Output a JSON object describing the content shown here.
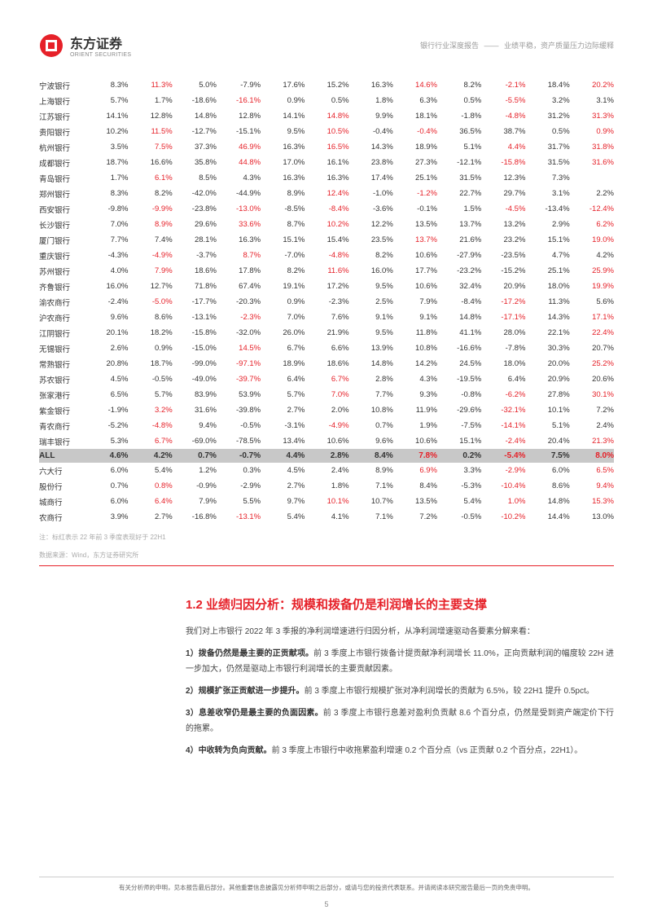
{
  "header": {
    "brand_cn": "东方证券",
    "brand_en": "ORIENT SECURITIES",
    "right_1": "银行行业深度报告",
    "right_sep": "——",
    "right_2": "业绩平稳，资产质量压力边际缓释"
  },
  "table": {
    "highlight_color": "#e62129",
    "rows": [
      {
        "n": "宁波银行",
        "v": [
          "8.3%",
          "11.3%",
          "5.0%",
          "-7.9%",
          "17.6%",
          "15.2%",
          "16.3%",
          "14.6%",
          "8.2%",
          "-2.1%",
          "18.4%",
          "20.2%"
        ],
        "h": [
          0,
          1,
          0,
          0,
          0,
          0,
          0,
          1,
          0,
          1,
          0,
          1
        ]
      },
      {
        "n": "上海银行",
        "v": [
          "5.7%",
          "1.7%",
          "-18.6%",
          "-16.1%",
          "0.9%",
          "0.5%",
          "1.8%",
          "6.3%",
          "0.5%",
          "-5.5%",
          "3.2%",
          "3.1%"
        ],
        "h": [
          0,
          0,
          0,
          1,
          0,
          0,
          0,
          0,
          0,
          1,
          0,
          0
        ]
      },
      {
        "n": "江苏银行",
        "v": [
          "14.1%",
          "12.8%",
          "14.8%",
          "12.8%",
          "14.1%",
          "14.8%",
          "9.9%",
          "18.1%",
          "-1.8%",
          "-4.8%",
          "31.2%",
          "31.3%"
        ],
        "h": [
          0,
          0,
          0,
          0,
          0,
          1,
          0,
          0,
          0,
          1,
          0,
          1
        ]
      },
      {
        "n": "贵阳银行",
        "v": [
          "10.2%",
          "11.5%",
          "-12.7%",
          "-15.1%",
          "9.5%",
          "10.5%",
          "-0.4%",
          "-0.4%",
          "36.5%",
          "38.7%",
          "0.5%",
          "0.9%"
        ],
        "h": [
          0,
          1,
          0,
          0,
          0,
          1,
          0,
          1,
          0,
          0,
          0,
          1
        ]
      },
      {
        "n": "杭州银行",
        "v": [
          "3.5%",
          "7.5%",
          "37.3%",
          "46.9%",
          "16.3%",
          "16.5%",
          "14.3%",
          "18.9%",
          "5.1%",
          "4.4%",
          "31.7%",
          "31.8%"
        ],
        "h": [
          0,
          1,
          0,
          1,
          0,
          1,
          0,
          0,
          0,
          1,
          0,
          1
        ]
      },
      {
        "n": "成都银行",
        "v": [
          "18.7%",
          "16.6%",
          "35.8%",
          "44.8%",
          "17.0%",
          "16.1%",
          "23.8%",
          "27.3%",
          "-12.1%",
          "-15.8%",
          "31.5%",
          "31.6%"
        ],
        "h": [
          0,
          0,
          0,
          1,
          0,
          0,
          0,
          0,
          0,
          1,
          0,
          1
        ]
      },
      {
        "n": "青岛银行",
        "v": [
          "1.7%",
          "6.1%",
          "8.5%",
          "4.3%",
          "16.3%",
          "16.3%",
          "17.4%",
          "25.1%",
          "31.5%",
          "12.3%",
          "7.3%",
          " "
        ],
        "h": [
          0,
          1,
          0,
          0,
          0,
          0,
          0,
          0,
          0,
          0,
          0,
          0
        ]
      },
      {
        "n": "郑州银行",
        "v": [
          "8.3%",
          "8.2%",
          "-42.0%",
          "-44.9%",
          "8.9%",
          "12.4%",
          "-1.0%",
          "-1.2%",
          "22.7%",
          "29.7%",
          "3.1%",
          "2.2%"
        ],
        "h": [
          0,
          0,
          0,
          0,
          0,
          1,
          0,
          1,
          0,
          0,
          0,
          0
        ]
      },
      {
        "n": "西安银行",
        "v": [
          "-9.8%",
          "-9.9%",
          "-23.8%",
          "-13.0%",
          "-8.5%",
          "-8.4%",
          "-3.6%",
          "-0.1%",
          "1.5%",
          "-4.5%",
          "-13.4%",
          "-12.4%"
        ],
        "h": [
          0,
          1,
          0,
          1,
          0,
          1,
          0,
          0,
          0,
          1,
          0,
          1
        ]
      },
      {
        "n": "长沙银行",
        "v": [
          "7.0%",
          "8.9%",
          "29.6%",
          "33.6%",
          "8.7%",
          "10.2%",
          "12.2%",
          "13.5%",
          "13.7%",
          "13.2%",
          "2.9%",
          "6.2%"
        ],
        "h": [
          0,
          1,
          0,
          1,
          0,
          1,
          0,
          0,
          0,
          0,
          0,
          1
        ]
      },
      {
        "n": "厦门银行",
        "v": [
          "7.7%",
          "7.4%",
          "28.1%",
          "16.3%",
          "15.1%",
          "15.4%",
          "23.5%",
          "13.7%",
          "21.6%",
          "23.2%",
          "15.1%",
          "19.0%"
        ],
        "h": [
          0,
          0,
          0,
          0,
          0,
          0,
          0,
          1,
          0,
          0,
          0,
          1
        ]
      },
      {
        "n": "重庆银行",
        "v": [
          "-4.3%",
          "-4.9%",
          "-3.7%",
          "8.7%",
          "-7.0%",
          "-4.8%",
          "8.2%",
          "10.6%",
          "-27.9%",
          "-23.5%",
          "4.7%",
          "4.2%"
        ],
        "h": [
          0,
          1,
          0,
          1,
          0,
          1,
          0,
          0,
          0,
          0,
          0,
          0
        ]
      },
      {
        "n": "苏州银行",
        "v": [
          "4.0%",
          "7.9%",
          "18.6%",
          "17.8%",
          "8.2%",
          "11.6%",
          "16.0%",
          "17.7%",
          "-23.2%",
          "-15.2%",
          "25.1%",
          "25.9%"
        ],
        "h": [
          0,
          1,
          0,
          0,
          0,
          1,
          0,
          0,
          0,
          0,
          0,
          1
        ]
      },
      {
        "n": "齐鲁银行",
        "v": [
          "16.0%",
          "12.7%",
          "71.8%",
          "67.4%",
          "19.1%",
          "17.2%",
          "9.5%",
          "10.6%",
          "32.4%",
          "20.9%",
          "18.0%",
          "19.9%"
        ],
        "h": [
          0,
          0,
          0,
          0,
          0,
          0,
          0,
          0,
          0,
          0,
          0,
          1
        ]
      },
      {
        "n": "渝农商行",
        "v": [
          "-2.4%",
          "-5.0%",
          "-17.7%",
          "-20.3%",
          "0.9%",
          "-2.3%",
          "2.5%",
          "7.9%",
          "-8.4%",
          "-17.2%",
          "11.3%",
          "5.6%"
        ],
        "h": [
          0,
          1,
          0,
          0,
          0,
          0,
          0,
          0,
          0,
          1,
          0,
          0
        ]
      },
      {
        "n": "沪农商行",
        "v": [
          "9.6%",
          "8.6%",
          "-13.1%",
          "-2.3%",
          "7.0%",
          "7.6%",
          "9.1%",
          "9.1%",
          "14.8%",
          "-17.1%",
          "14.3%",
          "17.1%"
        ],
        "h": [
          0,
          0,
          0,
          1,
          0,
          0,
          0,
          0,
          0,
          1,
          0,
          1
        ]
      },
      {
        "n": "江阴银行",
        "v": [
          "20.1%",
          "18.2%",
          "-15.8%",
          "-32.0%",
          "26.0%",
          "21.9%",
          "9.5%",
          "11.8%",
          "41.1%",
          "28.0%",
          "22.1%",
          "22.4%"
        ],
        "h": [
          0,
          0,
          0,
          0,
          0,
          0,
          0,
          0,
          0,
          0,
          0,
          1
        ]
      },
      {
        "n": "无锡银行",
        "v": [
          "2.6%",
          "0.9%",
          "-15.0%",
          "14.5%",
          "6.7%",
          "6.6%",
          "13.9%",
          "10.8%",
          "-16.6%",
          "-7.8%",
          "30.3%",
          "20.7%"
        ],
        "h": [
          0,
          0,
          0,
          1,
          0,
          0,
          0,
          0,
          0,
          0,
          0,
          0
        ]
      },
      {
        "n": "常熟银行",
        "v": [
          "20.8%",
          "18.7%",
          "-99.0%",
          "-97.1%",
          "18.9%",
          "18.6%",
          "14.8%",
          "14.2%",
          "24.5%",
          "18.0%",
          "20.0%",
          "25.2%"
        ],
        "h": [
          0,
          0,
          0,
          1,
          0,
          0,
          0,
          0,
          0,
          0,
          0,
          1
        ]
      },
      {
        "n": "苏农银行",
        "v": [
          "4.5%",
          "-0.5%",
          "-49.0%",
          "-39.7%",
          "6.4%",
          "6.7%",
          "2.8%",
          "4.3%",
          "-19.5%",
          "6.4%",
          "20.9%",
          "20.6%"
        ],
        "h": [
          0,
          0,
          0,
          1,
          0,
          1,
          0,
          0,
          0,
          0,
          0,
          0
        ]
      },
      {
        "n": "张家港行",
        "v": [
          "6.5%",
          "5.7%",
          "83.9%",
          "53.9%",
          "5.7%",
          "7.0%",
          "7.7%",
          "9.3%",
          "-0.8%",
          "-6.2%",
          "27.8%",
          "30.1%"
        ],
        "h": [
          0,
          0,
          0,
          0,
          0,
          1,
          0,
          0,
          0,
          1,
          0,
          1
        ]
      },
      {
        "n": "紫金银行",
        "v": [
          "-1.9%",
          "3.2%",
          "31.6%",
          "-39.8%",
          "2.7%",
          "2.0%",
          "10.8%",
          "11.9%",
          "-29.6%",
          "-32.1%",
          "10.1%",
          "7.2%"
        ],
        "h": [
          0,
          1,
          0,
          0,
          0,
          0,
          0,
          0,
          0,
          1,
          0,
          0
        ]
      },
      {
        "n": "青农商行",
        "v": [
          "-5.2%",
          "-4.8%",
          "9.4%",
          "-0.5%",
          "-3.1%",
          "-4.9%",
          "0.7%",
          "1.9%",
          "-7.5%",
          "-14.1%",
          "5.1%",
          "2.4%"
        ],
        "h": [
          0,
          1,
          0,
          0,
          0,
          1,
          0,
          0,
          0,
          1,
          0,
          0
        ]
      },
      {
        "n": "瑞丰银行",
        "v": [
          "5.3%",
          "6.7%",
          "-69.0%",
          "-78.5%",
          "13.4%",
          "10.6%",
          "9.6%",
          "10.6%",
          "15.1%",
          "-2.4%",
          "20.4%",
          "21.3%"
        ],
        "h": [
          0,
          1,
          0,
          0,
          0,
          0,
          0,
          0,
          0,
          1,
          0,
          1
        ]
      }
    ],
    "all_row": {
      "n": "ALL",
      "v": [
        "4.6%",
        "4.2%",
        "0.7%",
        "-0.7%",
        "4.4%",
        "2.8%",
        "8.4%",
        "7.8%",
        "0.2%",
        "-5.4%",
        "7.5%",
        "8.0%"
      ],
      "h": [
        0,
        0,
        0,
        0,
        0,
        0,
        0,
        1,
        0,
        1,
        0,
        1
      ]
    },
    "summary_rows": [
      {
        "n": "六大行",
        "v": [
          "6.0%",
          "5.4%",
          "1.2%",
          "0.3%",
          "4.5%",
          "2.4%",
          "8.9%",
          "6.9%",
          "3.3%",
          "-2.9%",
          "6.0%",
          "6.5%"
        ],
        "h": [
          0,
          0,
          0,
          0,
          0,
          0,
          0,
          1,
          0,
          1,
          0,
          1
        ]
      },
      {
        "n": "股份行",
        "v": [
          "0.7%",
          "0.8%",
          "-0.9%",
          "-2.9%",
          "2.7%",
          "1.8%",
          "7.1%",
          "8.4%",
          "-5.3%",
          "-10.4%",
          "8.6%",
          "9.4%"
        ],
        "h": [
          0,
          1,
          0,
          0,
          0,
          0,
          0,
          0,
          0,
          1,
          0,
          1
        ]
      },
      {
        "n": "城商行",
        "v": [
          "6.0%",
          "6.4%",
          "7.9%",
          "5.5%",
          "9.7%",
          "10.1%",
          "10.7%",
          "13.5%",
          "5.4%",
          "1.0%",
          "14.8%",
          "15.3%"
        ],
        "h": [
          0,
          1,
          0,
          0,
          0,
          1,
          0,
          0,
          0,
          1,
          0,
          1
        ]
      },
      {
        "n": "农商行",
        "v": [
          "3.9%",
          "2.7%",
          "-16.8%",
          "-13.1%",
          "5.4%",
          "4.1%",
          "7.1%",
          "7.2%",
          "-0.5%",
          "-10.2%",
          "14.4%",
          "13.0%"
        ],
        "h": [
          0,
          0,
          0,
          1,
          0,
          0,
          0,
          0,
          0,
          1,
          0,
          0
        ]
      }
    ]
  },
  "footnotes": {
    "note1": "注：标红表示 22 年前 3 季度表现好于 22H1",
    "note2": "数据来源：Wind，东方证券研究所"
  },
  "section": {
    "title": "1.2 业绩归因分析：规模和拨备仍是利润增长的主要支撑",
    "intro": "我们对上市银行 2022 年 3 季报的净利润增速进行归因分析，从净利润增速驱动各要素分解来看：",
    "items": [
      {
        "lead": "1）",
        "bold": "拨备仍然是最主要的正贡献项。",
        "rest": "前 3 季度上市银行拨备计提贡献净利润增长 11.0%，正向贡献利润的幅度较 22H 进一步加大，仍然是驱动上市银行利润增长的主要贡献因素。"
      },
      {
        "lead": "2）",
        "bold": "规模扩张正贡献进一步提升。",
        "rest": "前 3 季度上市银行规模扩张对净利润增长的贡献为 6.5%，较 22H1 提升 0.5pct。"
      },
      {
        "lead": "3）",
        "bold": "息差收窄仍是最主要的负面因素。",
        "rest": "前 3 季度上市银行息差对盈利负贡献 8.6 个百分点，仍然是受到资产端定价下行的拖累。"
      },
      {
        "lead": "4）",
        "bold": "中收转为负向贡献。",
        "rest": "前 3 季度上市银行中收拖累盈利增速 0.2 个百分点（vs 正贡献 0.2 个百分点，22H1）。"
      }
    ]
  },
  "footer": {
    "disclaimer": "有关分析师的申明，见本报告最后部分。其他重要信息披露见分析师申明之后部分，或请与您的投资代表联系。并请阅读本研究报告最后一页的免责申明。",
    "page": "5"
  }
}
